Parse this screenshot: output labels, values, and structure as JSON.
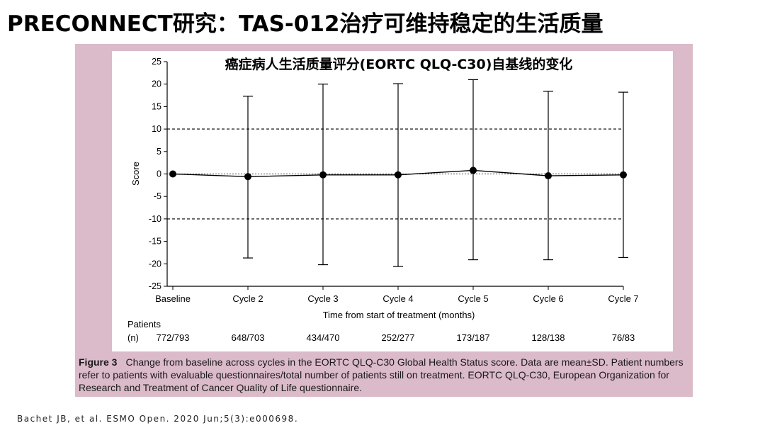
{
  "slide": {
    "title": "PRECONNECT研究：TAS-012治疗可维持稳定的生活质量",
    "citation": "Bachet JB, et al. ESMO Open. 2020 Jun;5(3):e000698."
  },
  "caption": {
    "label": "Figure 3",
    "text": "Change from baseline across cycles in the EORTC QLQ-C30 Global Health Status score. Data are mean±SD. Patient numbers refer to patients with evaluable questionnaires/total number of patients still on treatment. EORTC QLQ-C30, European Organization for Research and Treatment of Cancer Quality of Life questionnaire."
  },
  "chart_data": {
    "type": "line",
    "title": "癌症病人生活质量评分(EORTC QLQ-C30)自基线的变化",
    "xlabel": "Time from start of treatment (months)",
    "ylabel": "Score",
    "categories": [
      "Baseline",
      "Cycle 2",
      "Cycle 3",
      "Cycle 4",
      "Cycle 5",
      "Cycle 6",
      "Cycle 7"
    ],
    "mean": [
      0,
      -0.6,
      -0.2,
      -0.2,
      0.8,
      -0.4,
      -0.2
    ],
    "sd_upper": [
      0,
      17.3,
      20.0,
      20.1,
      21.0,
      18.4,
      18.2
    ],
    "sd_lower": [
      0,
      -18.7,
      -20.2,
      -20.6,
      -19.1,
      -19.1,
      -18.6
    ],
    "ylim": [
      -25,
      25
    ],
    "yticks": [
      25,
      20,
      15,
      10,
      5,
      0,
      -5,
      -10,
      -15,
      -20,
      -25
    ],
    "reference_lines": [
      10,
      0,
      -10
    ],
    "patients_label": "Patients",
    "patients_unit": "(n)",
    "patients": [
      "772/793",
      "648/703",
      "434/470",
      "252/277",
      "173/187",
      "128/138",
      "76/83"
    ],
    "colors": {
      "line": "#000000",
      "panel": "#dbbac9",
      "plot_bg": "#ffffff"
    }
  }
}
